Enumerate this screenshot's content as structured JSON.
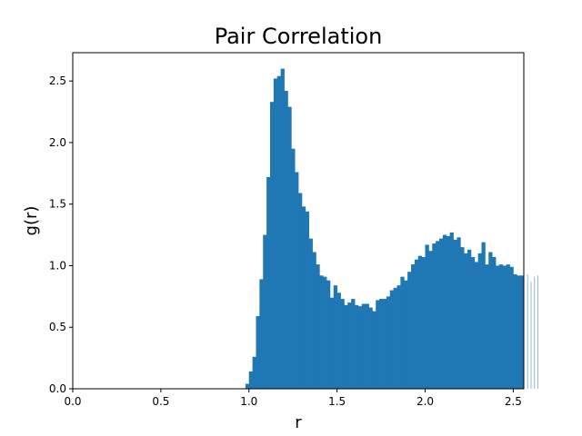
{
  "chart_data": {
    "type": "bar",
    "title": "Pair Correlation",
    "xlabel": "r",
    "ylabel": "g(r)",
    "xlim": [
      0.0,
      2.56
    ],
    "ylim": [
      0.0,
      2.73
    ],
    "grid": false,
    "color": "#1f77b4",
    "bin_width": 0.02,
    "x_start": 0.0,
    "x_ticks": [
      "0.0",
      "0.5",
      "1.0",
      "1.5",
      "2.0",
      "2.5"
    ],
    "y_ticks": [
      "0.0",
      "0.5",
      "1.0",
      "1.5",
      "2.0",
      "2.5"
    ],
    "values": [
      0,
      0,
      0,
      0,
      0,
      0,
      0,
      0,
      0,
      0,
      0,
      0,
      0,
      0,
      0,
      0,
      0,
      0,
      0,
      0,
      0,
      0,
      0,
      0,
      0,
      0,
      0,
      0,
      0,
      0,
      0,
      0,
      0,
      0,
      0,
      0,
      0,
      0,
      0,
      0,
      0,
      0,
      0,
      0,
      0,
      0,
      0,
      0,
      0,
      0.04,
      0.14,
      0.26,
      0.59,
      0.89,
      1.25,
      1.72,
      2.33,
      2.52,
      2.54,
      2.6,
      2.42,
      2.29,
      1.95,
      1.76,
      1.59,
      1.48,
      1.44,
      1.22,
      1.11,
      1.01,
      0.92,
      0.91,
      0.88,
      0.74,
      0.84,
      0.78,
      0.73,
      0.68,
      0.7,
      0.73,
      0.68,
      0.67,
      0.69,
      0.69,
      0.66,
      0.63,
      0.72,
      0.73,
      0.73,
      0.75,
      0.8,
      0.82,
      0.84,
      0.91,
      0.88,
      0.95,
      1.01,
      1.05,
      1.08,
      1.07,
      1.17,
      1.12,
      1.18,
      1.2,
      1.22,
      1.25,
      1.24,
      1.27,
      1.21,
      1.23,
      1.15,
      1.1,
      1.13,
      1.07,
      1.03,
      1.1,
      1.19,
      1.01,
      1.11,
      1.07,
      1.0,
      1.01,
      1.0,
      1.01,
      0.99,
      0.93,
      0.92,
      0.92,
      0.91,
      0.93,
      0.87,
      0.91,
      0.92
    ]
  }
}
